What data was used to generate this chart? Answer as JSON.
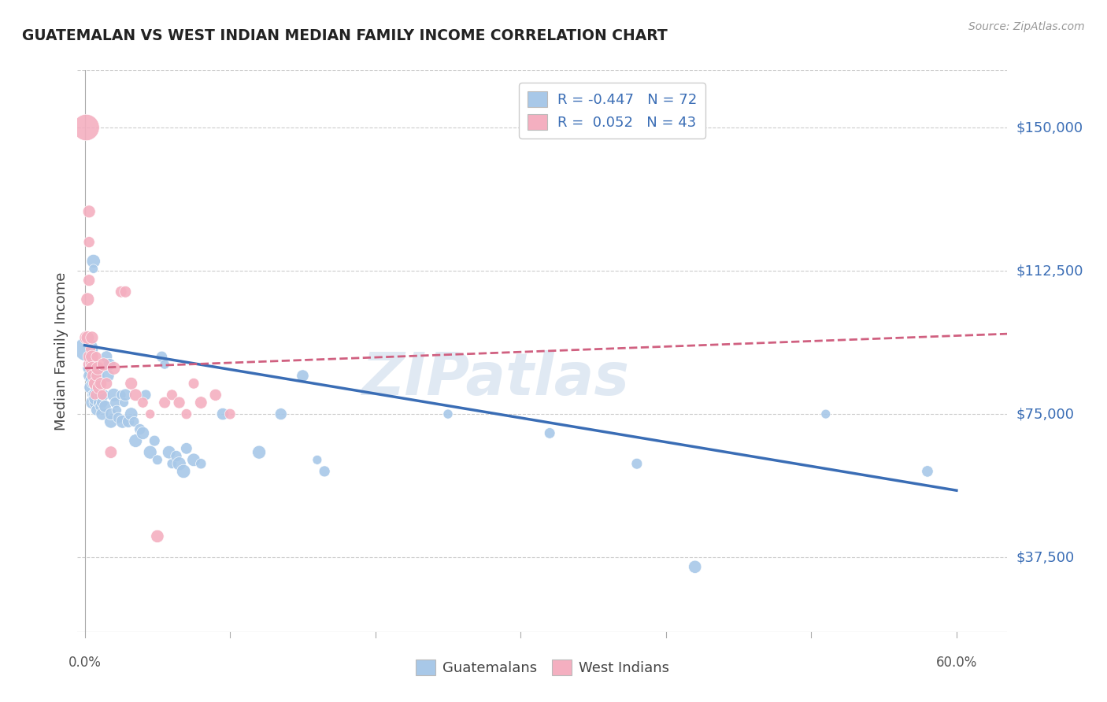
{
  "title": "GUATEMALAN VS WEST INDIAN MEDIAN FAMILY INCOME CORRELATION CHART",
  "source": "Source: ZipAtlas.com",
  "ylabel": "Median Family Income",
  "ytick_labels": [
    "$37,500",
    "$75,000",
    "$112,500",
    "$150,000"
  ],
  "ytick_values": [
    37500,
    75000,
    112500,
    150000
  ],
  "ymin": 18000,
  "ymax": 165000,
  "xmin": -0.005,
  "xmax": 0.635,
  "watermark": "ZIPatlas",
  "blue_color": "#a8c8e8",
  "pink_color": "#f4afc0",
  "blue_line_color": "#3a6db5",
  "pink_line_color": "#d06080",
  "grid_color": "#cccccc",
  "blue_scatter_x": [
    0.001,
    0.002,
    0.002,
    0.003,
    0.003,
    0.003,
    0.004,
    0.004,
    0.005,
    0.005,
    0.005,
    0.006,
    0.006,
    0.007,
    0.007,
    0.007,
    0.008,
    0.008,
    0.009,
    0.009,
    0.01,
    0.01,
    0.011,
    0.012,
    0.012,
    0.013,
    0.014,
    0.015,
    0.016,
    0.017,
    0.018,
    0.018,
    0.02,
    0.021,
    0.022,
    0.023,
    0.025,
    0.026,
    0.027,
    0.028,
    0.03,
    0.032,
    0.034,
    0.035,
    0.038,
    0.04,
    0.042,
    0.045,
    0.048,
    0.05,
    0.053,
    0.055,
    0.058,
    0.06,
    0.063,
    0.065,
    0.068,
    0.07,
    0.075,
    0.08,
    0.095,
    0.12,
    0.135,
    0.15,
    0.16,
    0.165,
    0.25,
    0.32,
    0.38,
    0.42,
    0.51,
    0.58
  ],
  "blue_scatter_y": [
    92000,
    88000,
    95000,
    87000,
    85000,
    90000,
    84000,
    82000,
    83000,
    80000,
    78000,
    115000,
    113000,
    78000,
    80000,
    79000,
    82000,
    76000,
    85000,
    83000,
    78000,
    80000,
    77000,
    75000,
    78000,
    80000,
    77000,
    90000,
    85000,
    88000,
    73000,
    75000,
    80000,
    78000,
    76000,
    74000,
    80000,
    73000,
    78000,
    80000,
    73000,
    75000,
    73000,
    68000,
    71000,
    70000,
    80000,
    65000,
    68000,
    63000,
    90000,
    88000,
    65000,
    62000,
    64000,
    62000,
    60000,
    66000,
    63000,
    62000,
    75000,
    65000,
    75000,
    85000,
    63000,
    60000,
    75000,
    70000,
    62000,
    35000,
    75000,
    60000
  ],
  "pink_scatter_x": [
    0.001,
    0.001,
    0.002,
    0.002,
    0.002,
    0.003,
    0.003,
    0.003,
    0.003,
    0.004,
    0.004,
    0.005,
    0.005,
    0.005,
    0.006,
    0.006,
    0.007,
    0.007,
    0.008,
    0.008,
    0.009,
    0.01,
    0.011,
    0.012,
    0.013,
    0.015,
    0.018,
    0.02,
    0.025,
    0.028,
    0.032,
    0.035,
    0.04,
    0.045,
    0.05,
    0.055,
    0.06,
    0.065,
    0.07,
    0.075,
    0.08,
    0.09,
    0.1
  ],
  "pink_scatter_y": [
    150000,
    95000,
    105000,
    95000,
    88000,
    128000,
    120000,
    110000,
    90000,
    92000,
    88000,
    95000,
    90000,
    87000,
    85000,
    83000,
    80000,
    83000,
    90000,
    85000,
    87000,
    82000,
    83000,
    80000,
    88000,
    83000,
    65000,
    87000,
    107000,
    107000,
    83000,
    80000,
    78000,
    75000,
    43000,
    78000,
    80000,
    78000,
    75000,
    83000,
    78000,
    80000,
    75000
  ],
  "blue_trend_x": [
    0.0,
    0.6
  ],
  "blue_trend_y": [
    93000,
    55000
  ],
  "pink_trend_x": [
    0.0,
    0.635
  ],
  "pink_trend_y": [
    87000,
    96000
  ],
  "legend1_labels": [
    "R = -0.447   N = 72",
    "R =  0.052   N = 43"
  ],
  "legend2_labels": [
    "Guatemalans",
    "West Indians"
  ]
}
